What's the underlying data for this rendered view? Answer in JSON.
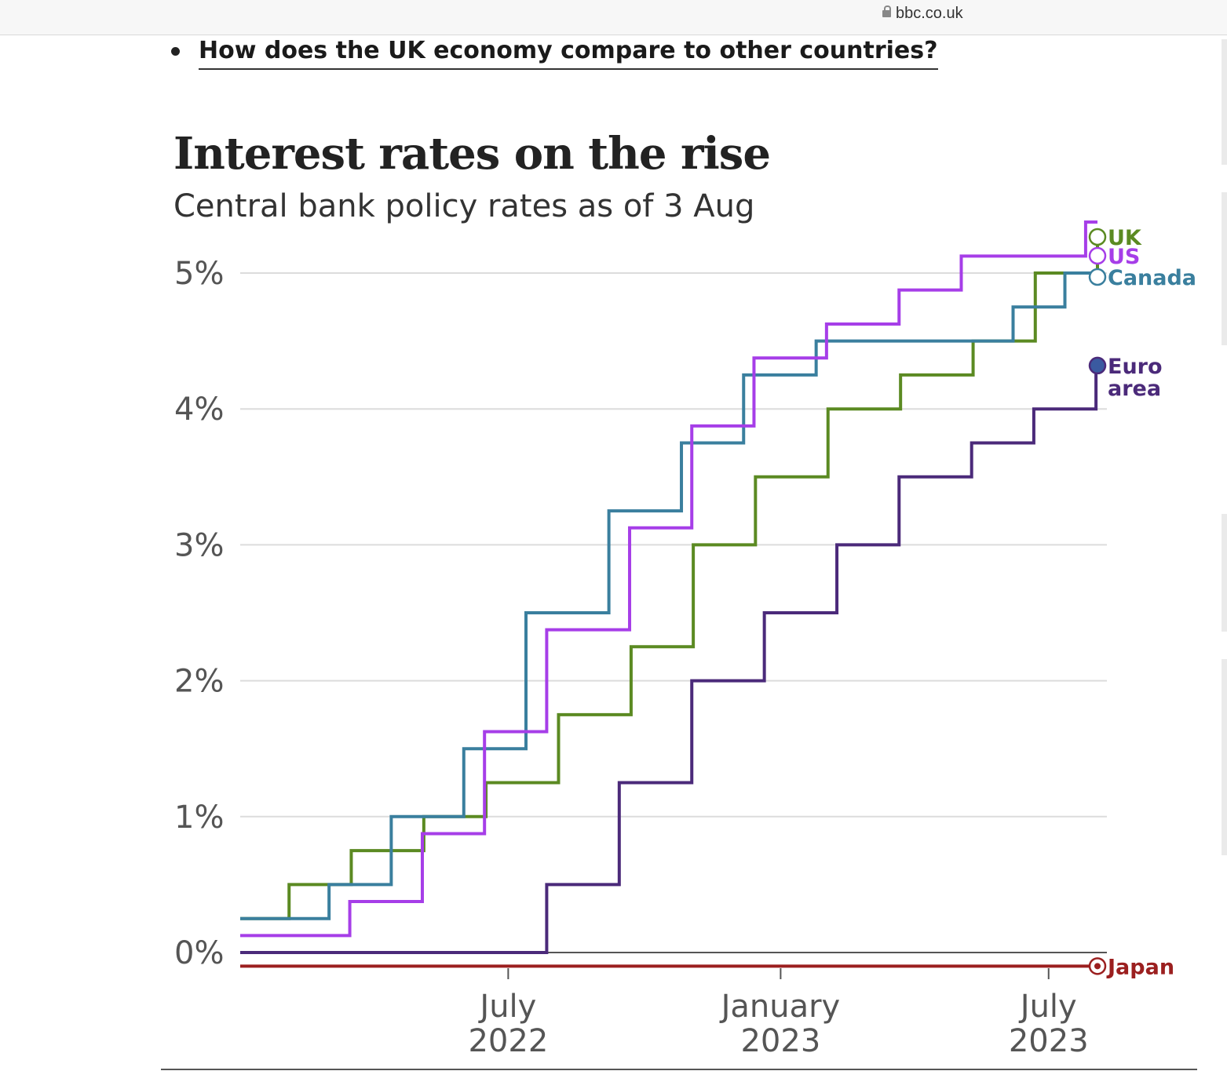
{
  "browser": {
    "url": "bbc.co.uk"
  },
  "article": {
    "link_text": "How does the UK economy compare to other countries?"
  },
  "chart_data": {
    "type": "line",
    "step": true,
    "title": "Interest rates on the rise",
    "subtitle": "Central bank policy rates as of 3 Aug",
    "xlabel": "",
    "ylabel": "",
    "ylim": [
      0,
      5
    ],
    "yticks": [
      0,
      1,
      2,
      3,
      4,
      5
    ],
    "ytick_labels": [
      "0%",
      "1%",
      "2%",
      "3%",
      "4%",
      "5%"
    ],
    "xlim": [
      "2022-01-01",
      "2023-08-03"
    ],
    "xticks": [
      "2022-07-01",
      "2023-01-01",
      "2023-07-01"
    ],
    "xtick_labels": [
      [
        "July",
        "2022"
      ],
      [
        "January",
        "2023"
      ],
      [
        "July",
        "2023"
      ]
    ],
    "grid": true,
    "series": [
      {
        "name": "UK",
        "color": "#5b8a22",
        "x": [
          "2022-01-01",
          "2022-02-03",
          "2022-03-17",
          "2022-05-05",
          "2022-06-16",
          "2022-08-04",
          "2022-09-22",
          "2022-11-03",
          "2022-12-15",
          "2023-02-02",
          "2023-03-23",
          "2023-05-11",
          "2023-06-22",
          "2023-08-03"
        ],
        "y": [
          0.25,
          0.5,
          0.75,
          1.0,
          1.25,
          1.75,
          2.25,
          3.0,
          3.5,
          4.0,
          4.25,
          4.5,
          5.0,
          5.25
        ]
      },
      {
        "name": "US",
        "color": "#a63ee8",
        "x": [
          "2022-01-01",
          "2022-03-16",
          "2022-05-04",
          "2022-06-15",
          "2022-07-27",
          "2022-09-21",
          "2022-11-02",
          "2022-12-14",
          "2023-02-01",
          "2023-03-22",
          "2023-05-03",
          "2023-07-26",
          "2023-08-03"
        ],
        "y": [
          0.125,
          0.375,
          0.875,
          1.625,
          2.375,
          3.125,
          3.875,
          4.375,
          4.625,
          4.875,
          5.125,
          5.375,
          5.375
        ]
      },
      {
        "name": "Canada",
        "color": "#3a7f9e",
        "x": [
          "2022-01-01",
          "2022-03-02",
          "2022-04-13",
          "2022-06-01",
          "2022-07-13",
          "2022-09-07",
          "2022-10-26",
          "2022-12-07",
          "2023-01-25",
          "2023-06-07",
          "2023-07-12",
          "2023-08-03"
        ],
        "y": [
          0.25,
          0.5,
          1.0,
          1.5,
          2.5,
          3.25,
          3.75,
          4.25,
          4.5,
          4.75,
          5.0,
          5.0
        ]
      },
      {
        "name": "Euro area",
        "color": "#4b2a7a",
        "x": [
          "2022-01-01",
          "2022-07-27",
          "2022-09-14",
          "2022-11-02",
          "2022-12-21",
          "2023-02-08",
          "2023-03-22",
          "2023-05-10",
          "2023-06-21",
          "2023-08-02",
          "2023-08-03"
        ],
        "y": [
          0,
          0.5,
          1.25,
          2.0,
          2.5,
          3.0,
          3.5,
          3.75,
          4.0,
          4.25,
          4.25
        ]
      },
      {
        "name": "Japan",
        "color": "#9b1f1f",
        "x": [
          "2022-01-01",
          "2023-08-03"
        ],
        "y": [
          -0.1,
          -0.1
        ]
      }
    ]
  }
}
